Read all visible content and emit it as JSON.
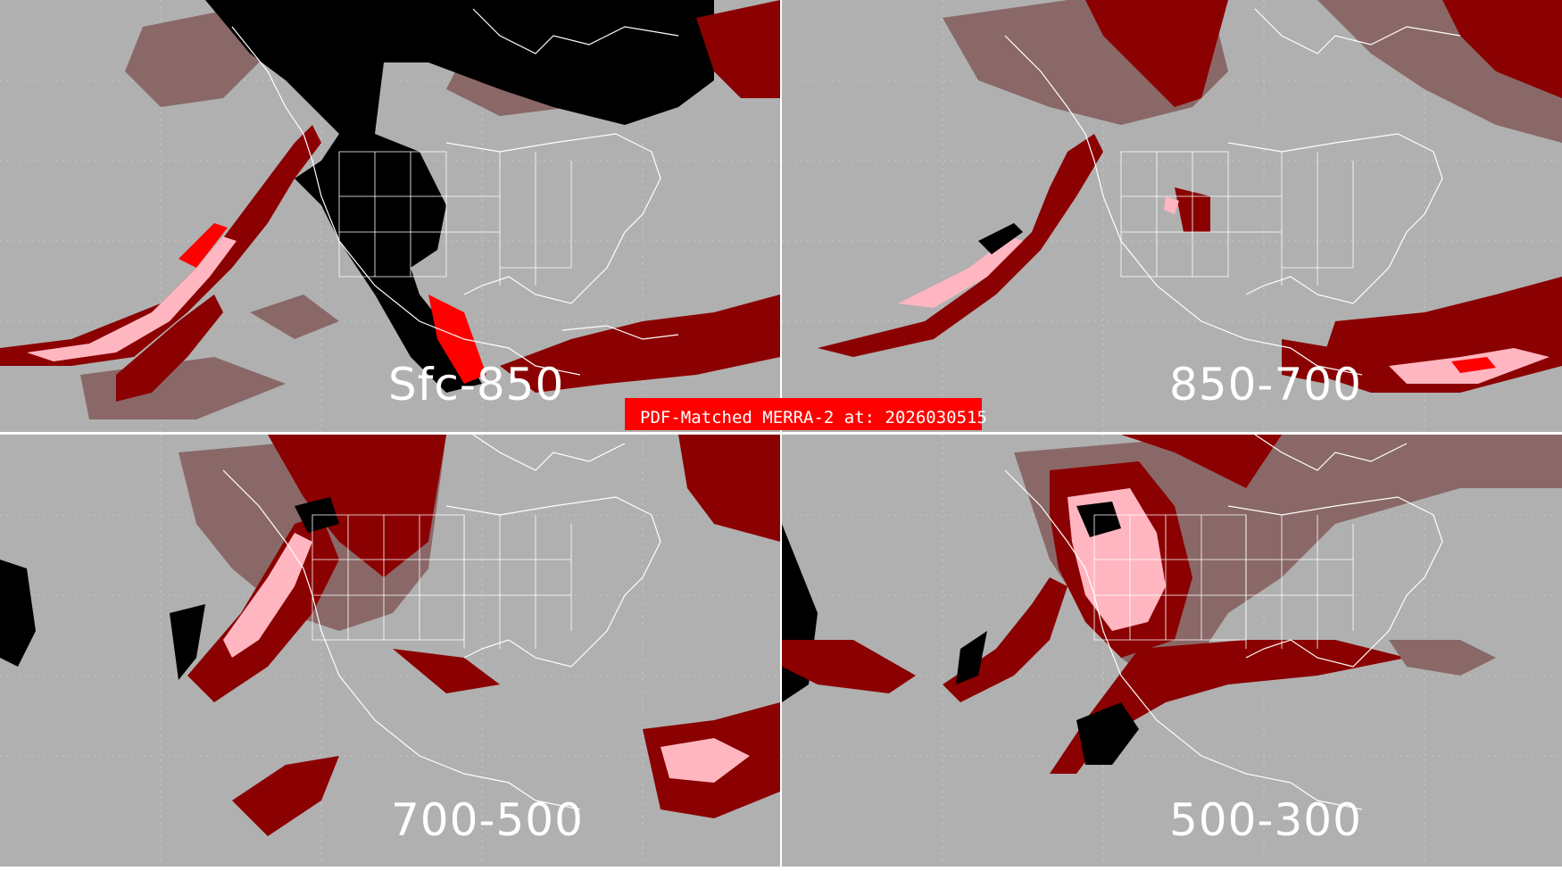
{
  "figure": {
    "title": "PDF-Matched MERRA-2 at: 2026030515",
    "colors": {
      "background": "#b0b0b0",
      "category_black": "#000000",
      "category_dark_red": "#8b0000",
      "category_mauve": "#8a6868",
      "category_red": "#ff0000",
      "category_pink": "#ffb6c1",
      "boundaries": "#ffffff"
    }
  },
  "panels": [
    {
      "layer": "Sfc-850"
    },
    {
      "layer": "850-700"
    },
    {
      "layer": "700-500"
    },
    {
      "layer": "500-300"
    }
  ]
}
